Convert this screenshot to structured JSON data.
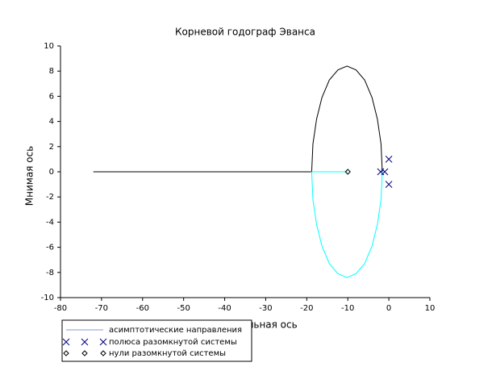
{
  "chart_data": {
    "type": "root_locus",
    "title": "Корневой годограф Эванса",
    "x_label": "Действительная ось",
    "y_label": "Мнимая ось",
    "xlim": [
      -80,
      10
    ],
    "xticks": [
      -80,
      -70,
      -60,
      -50,
      -40,
      -30,
      -20,
      -10,
      0,
      10
    ],
    "ylim": [
      -10,
      10
    ],
    "yticks": [
      -10,
      -8,
      -6,
      -4,
      -2,
      0,
      2,
      4,
      6,
      8,
      10
    ],
    "branches": [
      {
        "color": "#000000",
        "x": [
          -1.6,
          -1.9,
          -2.8,
          -4.1,
          -5.9,
          -8.0,
          -10.2,
          -12.4,
          -14.5,
          -16.3,
          -17.6,
          -18.5,
          -18.8,
          -72
        ],
        "y": [
          0,
          2.2,
          4.2,
          5.9,
          7.3,
          8.1,
          8.4,
          8.1,
          7.3,
          5.9,
          4.2,
          2.2,
          0,
          0
        ]
      },
      {
        "color": "#00ffff",
        "x": [
          -1.6,
          -1.9,
          -2.8,
          -4.1,
          -5.9,
          -8.0,
          -10.2,
          -12.4,
          -14.5,
          -16.3,
          -17.6,
          -18.5,
          -18.8,
          -10
        ],
        "y": [
          0,
          -2.2,
          -4.2,
          -5.9,
          -7.3,
          -8.1,
          -8.4,
          -8.1,
          -7.3,
          -5.9,
          -4.2,
          -2.2,
          0,
          0
        ]
      }
    ],
    "asymptotes": {
      "name": "асимптотические направления",
      "color": "#8a9bd0"
    },
    "poles": {
      "name": "полюса разомкнутой системы",
      "color": "#000080",
      "x": [
        0,
        0,
        -2,
        -1
      ],
      "y": [
        1,
        -1,
        0,
        0
      ]
    },
    "zeros": {
      "name": "нули разомкнутой системы",
      "color": "#000000",
      "x": [
        -10
      ],
      "y": [
        0
      ]
    }
  }
}
